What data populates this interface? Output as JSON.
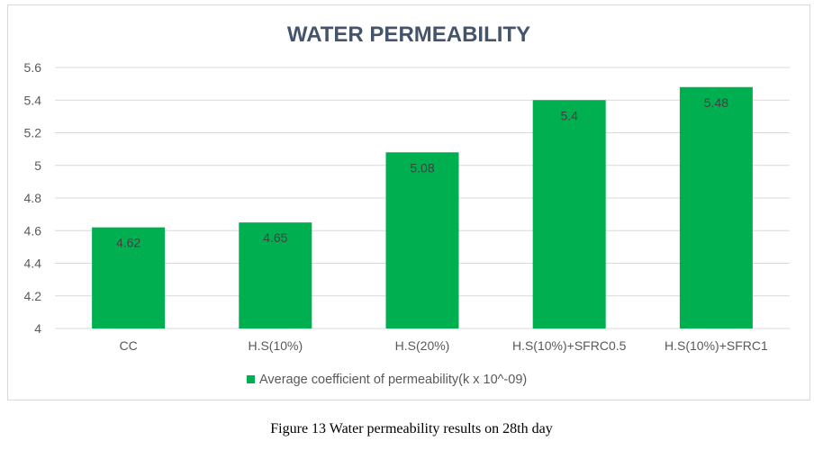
{
  "chart_data": {
    "type": "bar",
    "title": "WATER PERMEABILITY",
    "categories": [
      "CC",
      "H.S(10%)",
      "H.S(20%)",
      "H.S(10%)+SFRC0.5",
      "H.S(10%)+SFRC1"
    ],
    "series": [
      {
        "name": "Average coefficient of permeability(k x 10^-09)",
        "values": [
          4.62,
          4.65,
          5.08,
          5.4,
          5.48
        ],
        "color": "#00b050"
      }
    ],
    "data_labels": [
      "4.62",
      "4.65",
      "5.08",
      "5.4",
      "5.48"
    ],
    "y_ticks": [
      "4",
      "4.2",
      "4.4",
      "4.6",
      "4.8",
      "5",
      "5.2",
      "5.4",
      "5.6"
    ],
    "ylim": [
      4,
      5.6
    ],
    "xlabel": "",
    "ylabel": "",
    "grid": true,
    "legend_position": "bottom",
    "colors": {
      "title": "#44546a",
      "tick_label": "#595959",
      "gridline": "#d9d9d9",
      "data_label": "#404040"
    }
  },
  "caption": "Figure 13 Water permeability results on 28th day"
}
